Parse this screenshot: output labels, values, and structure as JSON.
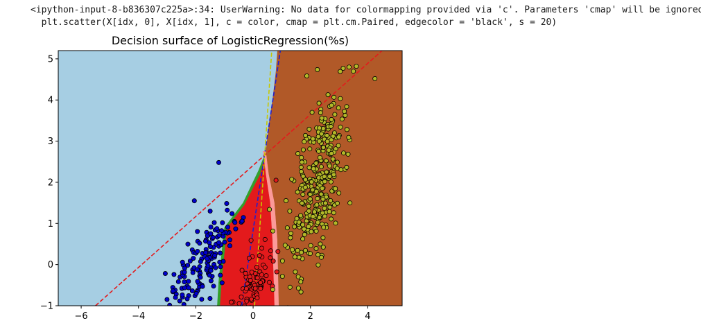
{
  "output": {
    "warning_line1": "<ipython-input-8-b836307c225a>:34: UserWarning: No data for colormapping provided via 'c'. Parameters 'cmap' will be ignored",
    "warning_line2": "  plt.scatter(X[idx, 0], X[idx, 1], c = color, cmap = plt.cm.Paired, edgecolor = 'black', s = 20)"
  },
  "chart_data": {
    "type": "scatter",
    "title": "Decision surface of LogisticRegression(%s)",
    "xlim": [
      -6.8,
      5.2
    ],
    "ylim": [
      -1.0,
      5.2
    ],
    "xticks": [
      -6,
      -4,
      -2,
      0,
      2,
      4
    ],
    "yticks": [
      -1,
      0,
      1,
      2,
      3,
      4,
      5
    ],
    "xtick_labels": [
      "−6",
      "−4",
      "−2",
      "0",
      "2",
      "4"
    ],
    "ytick_labels": [
      "−1",
      "0",
      "1",
      "2",
      "3",
      "4",
      "5"
    ],
    "grid": false,
    "legend": "none",
    "regions": [
      {
        "class": "blue-region",
        "color": "#a6cee3",
        "polygon": [
          [
            -6.8,
            -1.0
          ],
          [
            -1.25,
            -1.0
          ],
          [
            -1.2,
            -0.4
          ],
          [
            -1.0,
            0.9
          ],
          [
            -0.35,
            1.5
          ],
          [
            0.2,
            2.3
          ],
          [
            0.45,
            2.75
          ],
          [
            0.55,
            3.4
          ],
          [
            0.68,
            4.0
          ],
          [
            0.8,
            4.7
          ],
          [
            0.85,
            5.2
          ],
          [
            -6.8,
            5.2
          ]
        ]
      },
      {
        "class": "green-region",
        "color": "#33a02c",
        "polygon": [
          [
            -1.25,
            -1.0
          ],
          [
            -1.15,
            -1.0
          ],
          [
            -1.08,
            -0.3
          ],
          [
            -0.9,
            0.9
          ],
          [
            -0.3,
            1.45
          ],
          [
            0.25,
            2.2
          ],
          [
            0.45,
            2.75
          ],
          [
            0.2,
            2.3
          ],
          [
            -0.35,
            1.5
          ],
          [
            -1.0,
            0.9
          ],
          [
            -1.2,
            -0.4
          ]
        ]
      },
      {
        "class": "red-region",
        "color": "#e31a1c",
        "polygon": [
          [
            -1.15,
            -1.0
          ],
          [
            0.75,
            -1.0
          ],
          [
            0.68,
            0.6
          ],
          [
            0.6,
            1.5
          ],
          [
            0.45,
            2.2
          ],
          [
            0.35,
            2.75
          ],
          [
            0.45,
            2.75
          ],
          [
            0.25,
            2.2
          ],
          [
            -0.3,
            1.45
          ],
          [
            -0.9,
            0.9
          ],
          [
            -1.08,
            -0.3
          ]
        ]
      },
      {
        "class": "pink-region",
        "color": "#fb9a99",
        "polygon": [
          [
            0.75,
            -1.0
          ],
          [
            0.9,
            -1.0
          ],
          [
            0.85,
            0.6
          ],
          [
            0.75,
            1.5
          ],
          [
            0.55,
            2.2
          ],
          [
            0.45,
            2.75
          ],
          [
            0.35,
            2.75
          ],
          [
            0.45,
            2.2
          ],
          [
            0.6,
            1.5
          ],
          [
            0.68,
            0.6
          ]
        ]
      },
      {
        "class": "brown-region",
        "color": "#b15928",
        "polygon": [
          [
            0.9,
            -1.0
          ],
          [
            5.2,
            -1.0
          ],
          [
            5.2,
            5.2
          ],
          [
            0.85,
            5.2
          ],
          [
            0.8,
            4.7
          ],
          [
            0.68,
            4.0
          ],
          [
            0.55,
            3.4
          ],
          [
            0.45,
            2.75
          ],
          [
            0.55,
            2.2
          ],
          [
            0.75,
            1.5
          ],
          [
            0.85,
            0.6
          ]
        ]
      }
    ],
    "lines": [
      {
        "color": "#e31a1c",
        "x": [
          -5.5,
          4.5
        ],
        "y": [
          -1.0,
          5.2
        ]
      },
      {
        "color": "#1f1fd0",
        "x": [
          -0.4,
          0.95
        ],
        "y": [
          -1.0,
          5.2
        ]
      },
      {
        "color": "#c8c800",
        "x": [
          0.05,
          0.65
        ],
        "y": [
          -1.0,
          5.2
        ]
      }
    ],
    "series": [
      {
        "color": "#0000cc",
        "center": [
          -1.8,
          0.0
        ],
        "spread": [
          0.42,
          0.7
        ],
        "count": 160,
        "slope": 0.75,
        "points": [
          [
            -1.2,
            2.48
          ],
          [
            -2.05,
            1.55
          ],
          [
            -1.5,
            1.3
          ]
        ]
      },
      {
        "color": "#e31a1c",
        "center": [
          0.05,
          -0.5
        ],
        "spread": [
          0.28,
          0.4
        ],
        "count": 80,
        "slope": 0.4,
        "points": [
          [
            0.8,
            2.05
          ]
        ]
      },
      {
        "color": "#b2b829",
        "center": [
          2.25,
          2.0
        ],
        "spread": [
          0.38,
          1.15
        ],
        "count": 330,
        "slope": 0.23,
        "points": [
          [
            3.5,
            4.7
          ],
          [
            4.25,
            4.52
          ],
          [
            3.6,
            4.82
          ],
          [
            3.35,
            4.8
          ]
        ]
      }
    ]
  }
}
